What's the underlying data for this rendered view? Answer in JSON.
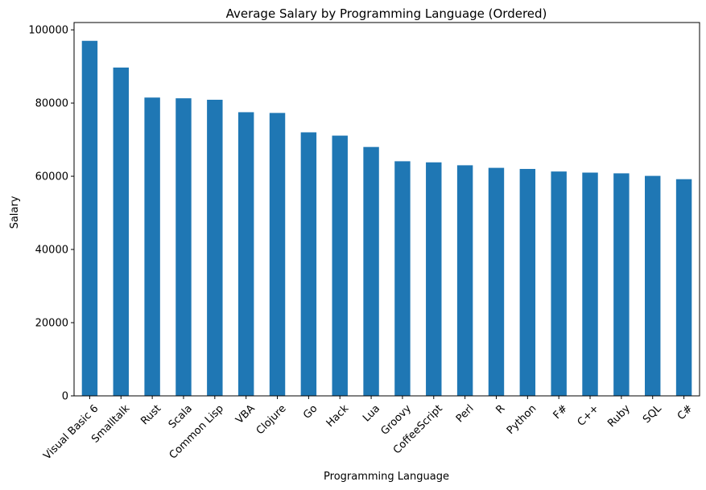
{
  "chart_data": {
    "type": "bar",
    "title": "Average Salary by Programming Language (Ordered)",
    "xlabel": "Programming Language",
    "ylabel": "Salary",
    "categories": [
      "Visual Basic 6",
      "Smalltalk",
      "Rust",
      "Scala",
      "Common Lisp",
      "VBA",
      "Clojure",
      "Go",
      "Hack",
      "Lua",
      "Groovy",
      "CoffeeScript",
      "Perl",
      "R",
      "Python",
      "F#",
      "C++",
      "Ruby",
      "SQL",
      "C#"
    ],
    "values": [
      97000,
      89700,
      81500,
      81300,
      80900,
      77500,
      77300,
      72000,
      71100,
      68000,
      64100,
      63800,
      63000,
      62300,
      62000,
      61300,
      61000,
      60800,
      60100,
      59200
    ],
    "ylim": [
      0,
      102000
    ],
    "yticks": [
      0,
      20000,
      40000,
      60000,
      80000,
      100000
    ],
    "ytick_labels": [
      "0",
      "20000",
      "40000",
      "60000",
      "80000",
      "100000"
    ],
    "bar_color": "#1f77b4",
    "grid": false,
    "legend": "none",
    "xtick_rotation": "45°"
  }
}
